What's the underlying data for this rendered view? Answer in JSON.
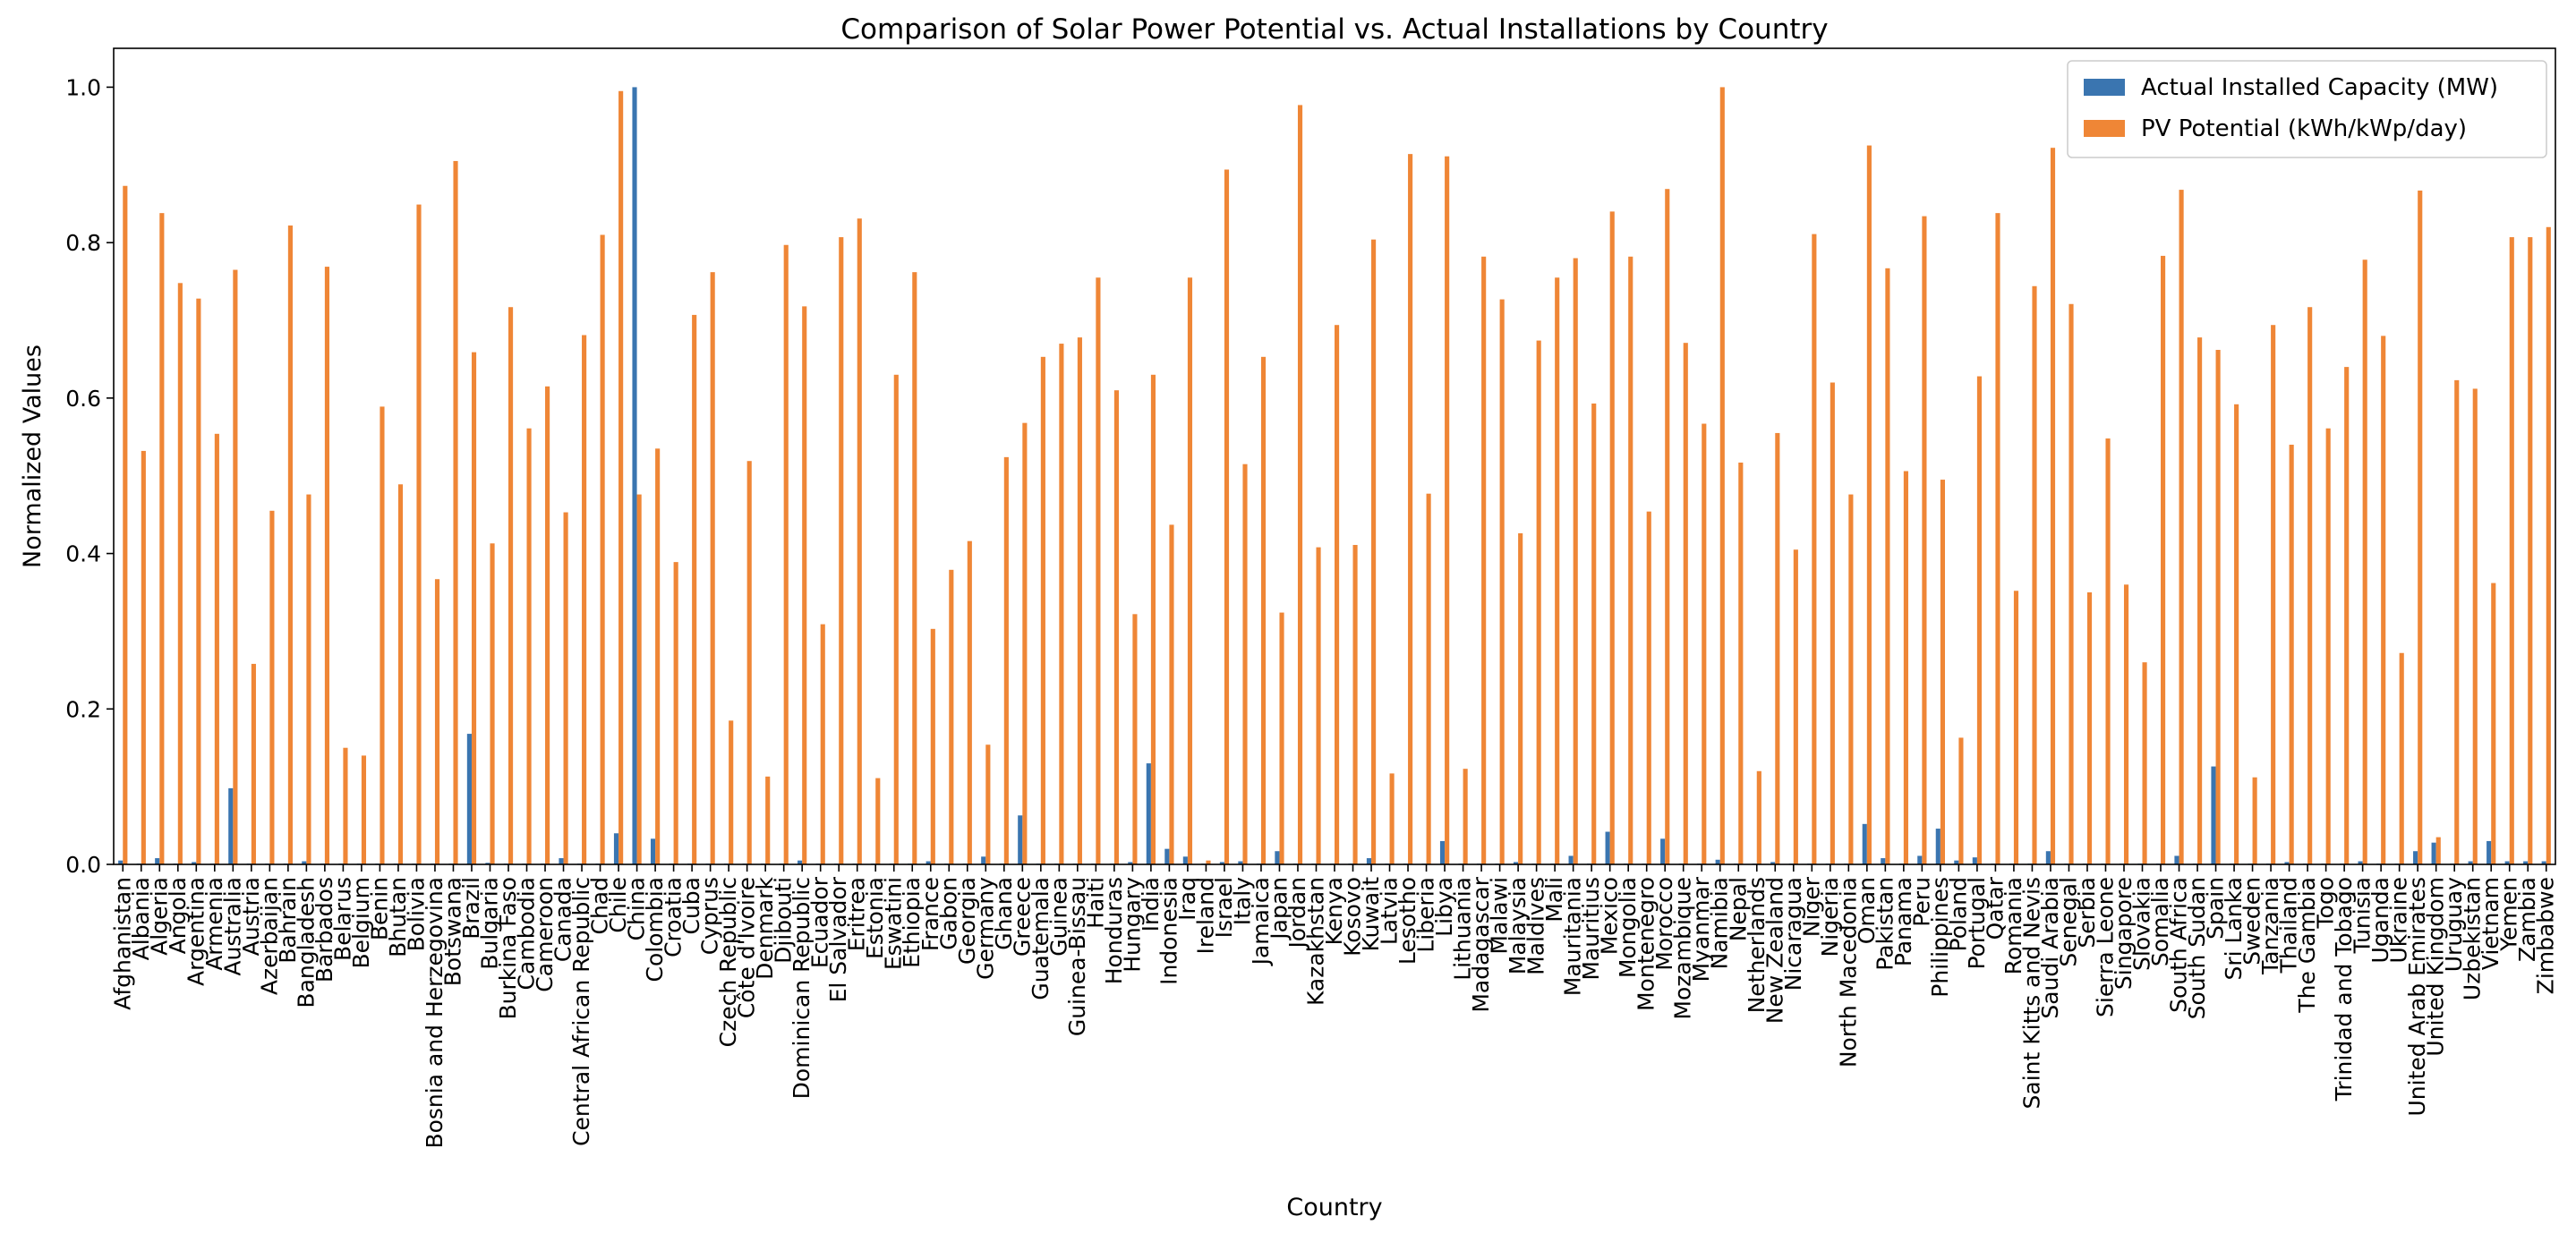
{
  "chart_data": {
    "type": "bar",
    "title": "Comparison of Solar Power Potential vs. Actual Installations by Country",
    "xlabel": "Country",
    "ylabel": "Normalized Values",
    "ylim": [
      0,
      1.05
    ],
    "yticks": [
      "0.0",
      "0.2",
      "0.4",
      "0.6",
      "0.8",
      "1.0"
    ],
    "legend_position": "top-right",
    "grid": false,
    "categories": [
      "Afghanistan",
      "Albania",
      "Algeria",
      "Angola",
      "Argentina",
      "Armenia",
      "Australia",
      "Austria",
      "Azerbaijan",
      "Bahrain",
      "Bangladesh",
      "Barbados",
      "Belarus",
      "Belgium",
      "Benin",
      "Bhutan",
      "Bolivia",
      "Bosnia and Herzegovina",
      "Botswana",
      "Brazil",
      "Bulgaria",
      "Burkina Faso",
      "Cambodia",
      "Cameroon",
      "Canada",
      "Central African Republic",
      "Chad",
      "Chile",
      "China",
      "Colombia",
      "Croatia",
      "Cuba",
      "Cyprus",
      "Czech Republic",
      "Côte d'Ivoire",
      "Denmark",
      "Djibouti",
      "Dominican Republic",
      "Ecuador",
      "El Salvador",
      "Eritrea",
      "Estonia",
      "Eswatini",
      "Ethiopia",
      "France",
      "Gabon",
      "Georgia",
      "Germany",
      "Ghana",
      "Greece",
      "Guatemala",
      "Guinea",
      "Guinea-Bissau",
      "Haiti",
      "Honduras",
      "Hungary",
      "India",
      "Indonesia",
      "Iraq",
      "Ireland",
      "Israel",
      "Italy",
      "Jamaica",
      "Japan",
      "Jordan",
      "Kazakhstan",
      "Kenya",
      "Kosovo",
      "Kuwait",
      "Latvia",
      "Lesotho",
      "Liberia",
      "Libya",
      "Lithuania",
      "Madagascar",
      "Malawi",
      "Malaysia",
      "Maldives",
      "Mali",
      "Mauritania",
      "Mauritius",
      "Mexico",
      "Mongolia",
      "Montenegro",
      "Morocco",
      "Mozambique",
      "Myanmar",
      "Namibia",
      "Nepal",
      "Netherlands",
      "New Zealand",
      "Nicaragua",
      "Niger",
      "Nigeria",
      "North Macedonia",
      "Oman",
      "Pakistan",
      "Panama",
      "Peru",
      "Philippines",
      "Poland",
      "Portugal",
      "Qatar",
      "Romania",
      "Saint Kitts and Nevis",
      "Saudi Arabia",
      "Senegal",
      "Serbia",
      "Sierra Leone",
      "Singapore",
      "Slovakia",
      "Somalia",
      "South Africa",
      "South Sudan",
      "Spain",
      "Sri Lanka",
      "Sweden",
      "Tanzania",
      "Thailand",
      "The Gambia",
      "Togo",
      "Trinidad and Tobago",
      "Tunisia",
      "Uganda",
      "Ukraine",
      "United Arab Emirates",
      "United Kingdom",
      "Uruguay",
      "Uzbekistan",
      "Vietnam",
      "Yemen",
      "Zambia",
      "Zimbabwe"
    ],
    "series": [
      {
        "name": "Actual Installed Capacity (MW)",
        "color": "#3a75b0",
        "values": [
          0.005,
          0.001,
          0.008,
          0.001,
          0.003,
          0.001,
          0.098,
          0.001,
          0.001,
          0.001,
          0.004,
          0.001,
          0.001,
          0.001,
          0.001,
          0.001,
          0.001,
          0.001,
          0.001,
          0.168,
          0.002,
          0.001,
          0.001,
          0.001,
          0.008,
          0.001,
          0.001,
          0.04,
          1.0,
          0.033,
          0.001,
          0.001,
          0.001,
          0.001,
          0.001,
          0.001,
          0.001,
          0.005,
          0.001,
          0.001,
          0.001,
          0.001,
          0.001,
          0.001,
          0.004,
          0.001,
          0.001,
          0.01,
          0.001,
          0.063,
          0.001,
          0.001,
          0.001,
          0.001,
          0.001,
          0.003,
          0.13,
          0.02,
          0.01,
          0.001,
          0.003,
          0.004,
          0.001,
          0.017,
          0.001,
          0.001,
          0.001,
          0.001,
          0.008,
          0.001,
          0.001,
          0.001,
          0.03,
          0.001,
          0.001,
          0.001,
          0.003,
          0.001,
          0.001,
          0.011,
          0.001,
          0.042,
          0.001,
          0.001,
          0.033,
          0.001,
          0.001,
          0.006,
          0.001,
          0.001,
          0.003,
          0.001,
          0.001,
          0.001,
          0.001,
          0.052,
          0.008,
          0.001,
          0.011,
          0.046,
          0.005,
          0.009,
          0.001,
          0.001,
          0.001,
          0.017,
          0.001,
          0.001,
          0.001,
          0.001,
          0.001,
          0.001,
          0.011,
          0.001,
          0.126,
          0.001,
          0.001,
          0.001,
          0.003,
          0.001,
          0.001,
          0.001,
          0.004,
          0.001,
          0.001,
          0.017,
          0.028,
          0.001,
          0.004,
          0.03,
          0.004,
          0.004,
          0.004
        ]
      },
      {
        "name": "PV Potential (kWh/kWp/day)",
        "color": "#ef8636",
        "values": [
          0.873,
          0.532,
          0.838,
          0.748,
          0.728,
          0.554,
          0.765,
          0.258,
          0.455,
          0.822,
          0.476,
          0.769,
          0.15,
          0.14,
          0.589,
          0.489,
          0.849,
          0.367,
          0.905,
          0.659,
          0.413,
          0.717,
          0.561,
          0.615,
          0.453,
          0.681,
          0.81,
          0.995,
          0.476,
          0.535,
          0.389,
          0.707,
          0.762,
          0.185,
          0.519,
          0.113,
          0.797,
          0.718,
          0.309,
          0.807,
          0.831,
          0.111,
          0.63,
          0.762,
          0.303,
          0.379,
          0.416,
          0.154,
          0.524,
          0.568,
          0.653,
          0.67,
          0.678,
          0.755,
          0.61,
          0.322,
          0.63,
          0.437,
          0.755,
          0.005,
          0.894,
          0.515,
          0.653,
          0.324,
          0.977,
          0.408,
          0.694,
          0.411,
          0.804,
          0.117,
          0.914,
          0.477,
          0.911,
          0.123,
          0.782,
          0.727,
          0.426,
          0.674,
          0.755,
          0.78,
          0.593,
          0.84,
          0.782,
          0.454,
          0.869,
          0.671,
          0.567,
          1.0,
          0.517,
          0.12,
          0.555,
          0.405,
          0.811,
          0.62,
          0.476,
          0.925,
          0.767,
          0.506,
          0.834,
          0.495,
          0.163,
          0.628,
          0.838,
          0.352,
          0.744,
          0.922,
          0.721,
          0.35,
          0.548,
          0.36,
          0.26,
          0.783,
          0.868,
          0.678,
          0.662,
          0.592,
          0.112,
          0.694,
          0.54,
          0.717,
          0.561,
          0.64,
          0.778,
          0.68,
          0.272,
          0.867,
          0.035,
          0.623,
          0.612,
          0.362,
          0.807,
          0.807,
          0.82
        ]
      }
    ]
  }
}
